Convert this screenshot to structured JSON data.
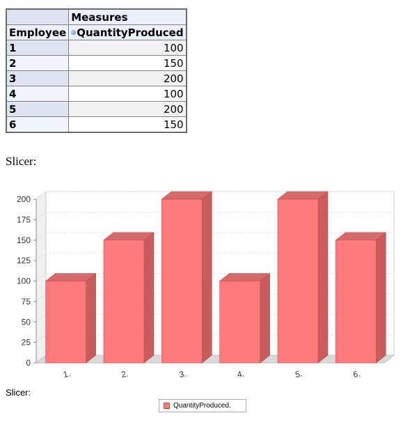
{
  "table": {
    "measures_header": "Measures",
    "row_header": "Employee",
    "measure_name": "QuantityProduced",
    "rows": [
      {
        "employee": "1",
        "value": "100"
      },
      {
        "employee": "2",
        "value": "150"
      },
      {
        "employee": "3",
        "value": "200"
      },
      {
        "employee": "4",
        "value": "100"
      },
      {
        "employee": "5",
        "value": "200"
      },
      {
        "employee": "6",
        "value": "150"
      }
    ]
  },
  "slicer_top": "Slicer:",
  "slicer_bottom": "Slicer:",
  "chart_data": {
    "type": "bar",
    "categories": [
      "1.",
      "2.",
      "3.",
      "4.",
      "5.",
      "6."
    ],
    "series": [
      {
        "name": "QuantityProduced.",
        "values": [
          100,
          150,
          200,
          100,
          200,
          150
        ]
      }
    ],
    "yticks": [
      0,
      25,
      50,
      75,
      100,
      125,
      150,
      175,
      200
    ],
    "ylim": [
      0,
      200
    ],
    "grid": true,
    "legend": "bottom-center",
    "colors": {
      "bar_front": "#ff7a7a",
      "bar_top": "#d46a6a",
      "bar_side": "#c95d5d",
      "bar_edge": "#c24f4f"
    }
  }
}
